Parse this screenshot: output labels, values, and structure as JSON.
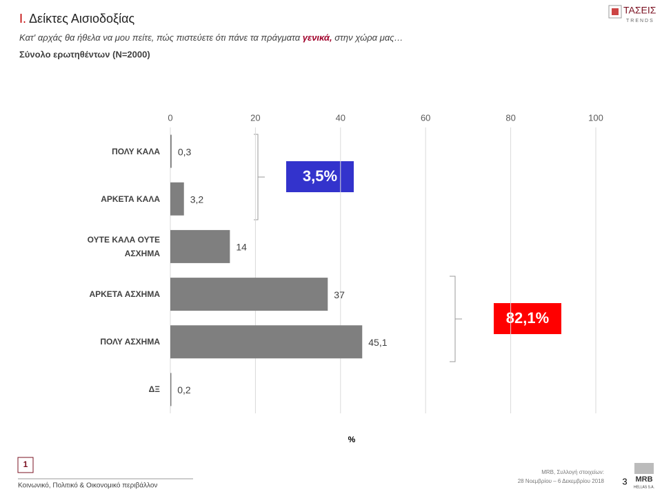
{
  "header": {
    "title_number": "Ι.",
    "title": "Δείκτες Αισιοδοξίας",
    "subtitle_start": "Κατ' αρχάς θα ήθελα να μου πείτε, πώς πιστεύετε ότι πάνε τα πράγματα ",
    "subtitle_emphasis": "γενικά,",
    "subtitle_end": " στην χώρα μας…",
    "base": "Σύνολο ερωτηθέντων (N=2000)",
    "logo_main": "ΤΑΣΕΙΣ",
    "logo_sub": "TRENDS"
  },
  "chart_data": {
    "type": "hbar",
    "categories": [
      "ΠΟΛΥ ΚΑΛΑ",
      "ΑΡΚΕΤΑ ΚΑΛΑ",
      "ΟΥΤΕ ΚΑΛΑ ΟΥΤΕ ΑΣΧΗΜΑ",
      "ΑΡΚΕΤΑ ΑΣΧΗΜΑ",
      "ΠΟΛΥ ΑΣΧΗΜΑ",
      "ΔΞ"
    ],
    "values": [
      0.3,
      3.2,
      14,
      37,
      45.1,
      0.2
    ],
    "value_labels": [
      "0,3",
      "3,2",
      "14",
      "37",
      "45,1",
      "0,2"
    ],
    "color": "#7f7f7f",
    "xlim": [
      0,
      100
    ],
    "xticks": [
      0,
      20,
      40,
      60,
      80,
      100
    ],
    "grid": true,
    "xlabel": "%",
    "annotations": [
      "3,5%",
      "82,1%"
    ]
  },
  "footer": {
    "section_number": "1",
    "section": "Κοινωνικό, Πολιτικό & Οικονομικό περιβάλλον",
    "source": "MRB, Συλλογή στοιχείων:",
    "dates": "28 Νοεμβρίου – 6 Δεκεμβρίου 2018",
    "page": "3",
    "logo_main": "MRB",
    "logo_sub": "HELLAS S.A."
  }
}
